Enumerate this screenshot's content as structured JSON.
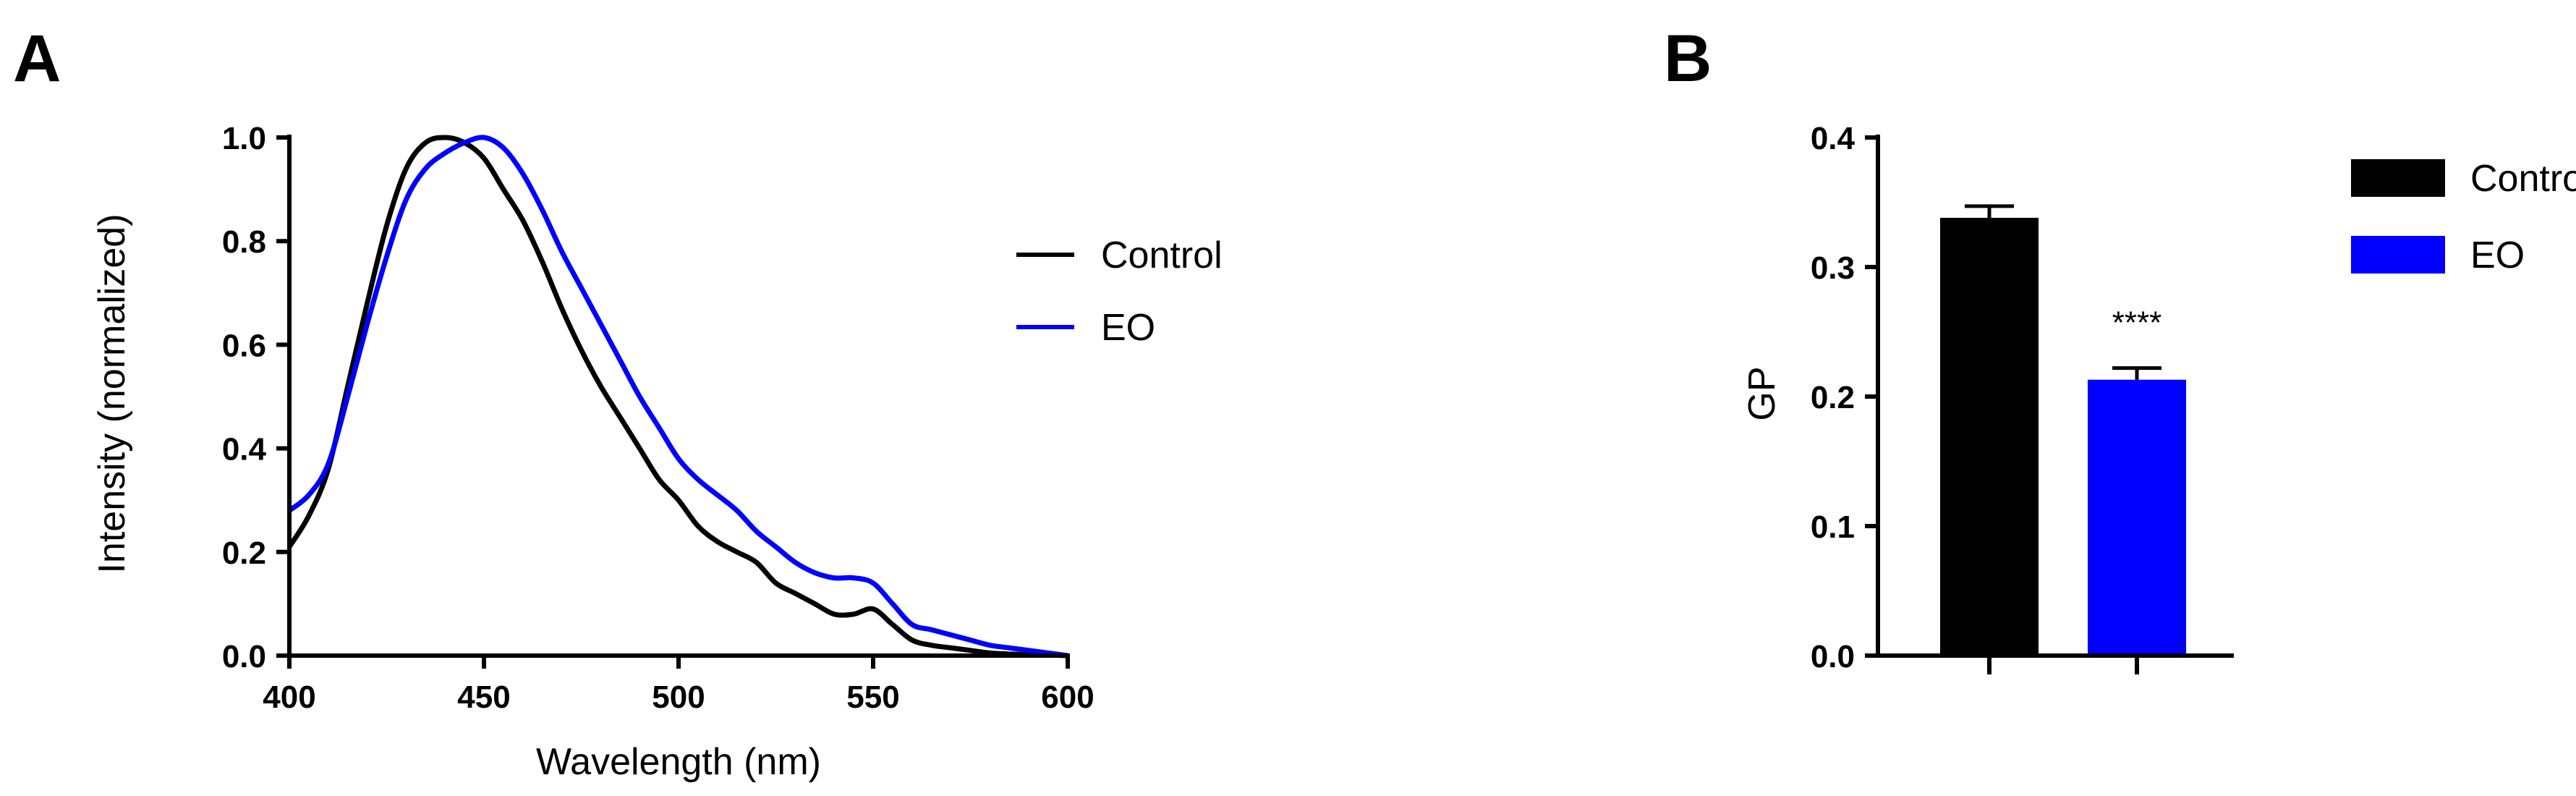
{
  "panels": {
    "a_label": "A",
    "b_label": "B"
  },
  "colors": {
    "control": "#000000",
    "eo": "#0000ff"
  },
  "chart_data": [
    {
      "type": "line",
      "title": "",
      "xlabel": "Wavelength (nm)",
      "ylabel": "Intensity (normalized)",
      "xlim": [
        400,
        600
      ],
      "ylim": [
        0,
        1.0
      ],
      "xticks": [
        "400",
        "450",
        "500",
        "550",
        "600"
      ],
      "yticks": [
        "0.0",
        "0.2",
        "0.4",
        "0.6",
        "0.8",
        "1.0"
      ],
      "legend_position": "right",
      "series": [
        {
          "name": "Control",
          "x": [
            400,
            405,
            410,
            415,
            420,
            425,
            430,
            435,
            440,
            445,
            450,
            455,
            460,
            465,
            470,
            475,
            480,
            485,
            490,
            495,
            500,
            505,
            510,
            515,
            520,
            525,
            530,
            535,
            540,
            545,
            550,
            555,
            560,
            565,
            570,
            575,
            580,
            585,
            590,
            595,
            600
          ],
          "values": [
            0.21,
            0.27,
            0.36,
            0.52,
            0.68,
            0.83,
            0.94,
            0.99,
            1.0,
            0.99,
            0.96,
            0.9,
            0.84,
            0.76,
            0.67,
            0.59,
            0.52,
            0.46,
            0.4,
            0.34,
            0.3,
            0.25,
            0.22,
            0.2,
            0.18,
            0.14,
            0.12,
            0.1,
            0.08,
            0.08,
            0.09,
            0.06,
            0.03,
            0.02,
            0.015,
            0.01,
            0.005,
            0.003,
            0.002,
            0.001,
            0.0
          ]
        },
        {
          "name": "EO",
          "x": [
            400,
            405,
            410,
            415,
            420,
            425,
            430,
            435,
            440,
            445,
            450,
            455,
            460,
            465,
            470,
            475,
            480,
            485,
            490,
            495,
            500,
            505,
            510,
            515,
            520,
            525,
            530,
            535,
            540,
            545,
            550,
            555,
            560,
            565,
            570,
            575,
            580,
            585,
            590,
            595,
            600
          ],
          "values": [
            0.28,
            0.31,
            0.37,
            0.5,
            0.64,
            0.77,
            0.88,
            0.94,
            0.97,
            0.99,
            1.0,
            0.98,
            0.93,
            0.86,
            0.78,
            0.71,
            0.64,
            0.57,
            0.5,
            0.44,
            0.38,
            0.34,
            0.31,
            0.28,
            0.24,
            0.21,
            0.18,
            0.16,
            0.15,
            0.15,
            0.14,
            0.1,
            0.06,
            0.05,
            0.04,
            0.03,
            0.02,
            0.015,
            0.01,
            0.005,
            0.0
          ]
        }
      ]
    },
    {
      "type": "bar",
      "title": "",
      "xlabel": "",
      "ylabel": "GP",
      "ylim": [
        0,
        0.4
      ],
      "yticks": [
        "0.0",
        "0.1",
        "0.2",
        "0.3",
        "0.4"
      ],
      "categories": [
        "Control",
        "EO"
      ],
      "values": [
        0.338,
        0.213
      ],
      "errors": [
        0.009,
        0.009
      ],
      "legend_position": "right",
      "annotations": [
        {
          "category": "EO",
          "text": "****"
        }
      ]
    }
  ]
}
